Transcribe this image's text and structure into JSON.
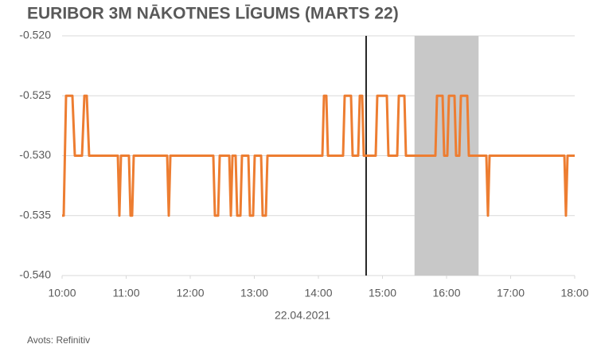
{
  "chart_data": {
    "type": "line",
    "title": "EURIBOR 3M NĀKOTNES LĪGUMS (MARTS 22)",
    "x_label": "22.04.2021",
    "source": "Avots: Refinitiv",
    "color": "#ed7d31",
    "grid": true,
    "shaded_region": [
      15.5,
      16.5
    ],
    "shade_color": "#c8c8c8",
    "vline": 14.745,
    "vline_color": "#262626",
    "xlim": [
      10,
      18
    ],
    "xticks": [
      {
        "value": 10,
        "label": "10:00"
      },
      {
        "value": 11,
        "label": "11:00"
      },
      {
        "value": 12,
        "label": "12:00"
      },
      {
        "value": 13,
        "label": "13:00"
      },
      {
        "value": 14,
        "label": "14:00"
      },
      {
        "value": 15,
        "label": "15:00"
      },
      {
        "value": 16,
        "label": "16:00"
      },
      {
        "value": 17,
        "label": "17:00"
      },
      {
        "value": 18,
        "label": "18:00"
      }
    ],
    "ylim": [
      -0.54,
      -0.52
    ],
    "yticks": [
      {
        "value": -0.54,
        "label": "-0.540"
      },
      {
        "value": -0.535,
        "label": "-0.535"
      },
      {
        "value": -0.53,
        "label": "-0.530"
      },
      {
        "value": -0.525,
        "label": "-0.525"
      },
      {
        "value": -0.52,
        "label": "-0.520"
      }
    ],
    "x": [
      10,
      10.025,
      10.062,
      10.161,
      10.199,
      10.311,
      10.348,
      10.385,
      10.422,
      10.87,
      10.894,
      10.919,
      11.043,
      11.068,
      11.093,
      11.118,
      11.64,
      11.665,
      11.69,
      12.36,
      12.385,
      12.435,
      12.46,
      12.609,
      12.634,
      12.659,
      12.708,
      12.733,
      12.783,
      12.807,
      12.907,
      12.932,
      12.981,
      13.006,
      13.106,
      13.13,
      13.18,
      13.205,
      14.062,
      14.087,
      14.124,
      14.149,
      14.385,
      14.41,
      14.509,
      14.534,
      14.621,
      14.646,
      14.683,
      14.708,
      14.894,
      14.919,
      15.068,
      15.093,
      15.23,
      15.255,
      15.342,
      15.366,
      15.826,
      15.851,
      15.938,
      15.963,
      16.012,
      16.037,
      16.124,
      16.149,
      16.199,
      16.224,
      16.323,
      16.348,
      16.621,
      16.646,
      16.671,
      17.839,
      17.863,
      17.888,
      18
    ],
    "values": [
      -0.535,
      -0.535,
      -0.525,
      -0.525,
      -0.53,
      -0.53,
      -0.525,
      -0.525,
      -0.53,
      -0.53,
      -0.535,
      -0.53,
      -0.53,
      -0.535,
      -0.535,
      -0.53,
      -0.53,
      -0.535,
      -0.53,
      -0.53,
      -0.535,
      -0.535,
      -0.53,
      -0.53,
      -0.535,
      -0.53,
      -0.53,
      -0.535,
      -0.535,
      -0.53,
      -0.53,
      -0.535,
      -0.535,
      -0.53,
      -0.53,
      -0.535,
      -0.535,
      -0.53,
      -0.53,
      -0.525,
      -0.525,
      -0.53,
      -0.53,
      -0.525,
      -0.525,
      -0.53,
      -0.53,
      -0.525,
      -0.525,
      -0.53,
      -0.53,
      -0.525,
      -0.525,
      -0.53,
      -0.53,
      -0.525,
      -0.525,
      -0.53,
      -0.53,
      -0.525,
      -0.525,
      -0.53,
      -0.53,
      -0.525,
      -0.525,
      -0.53,
      -0.53,
      -0.525,
      -0.525,
      -0.53,
      -0.53,
      -0.535,
      -0.53,
      -0.53,
      -0.535,
      -0.53,
      -0.53
    ]
  }
}
